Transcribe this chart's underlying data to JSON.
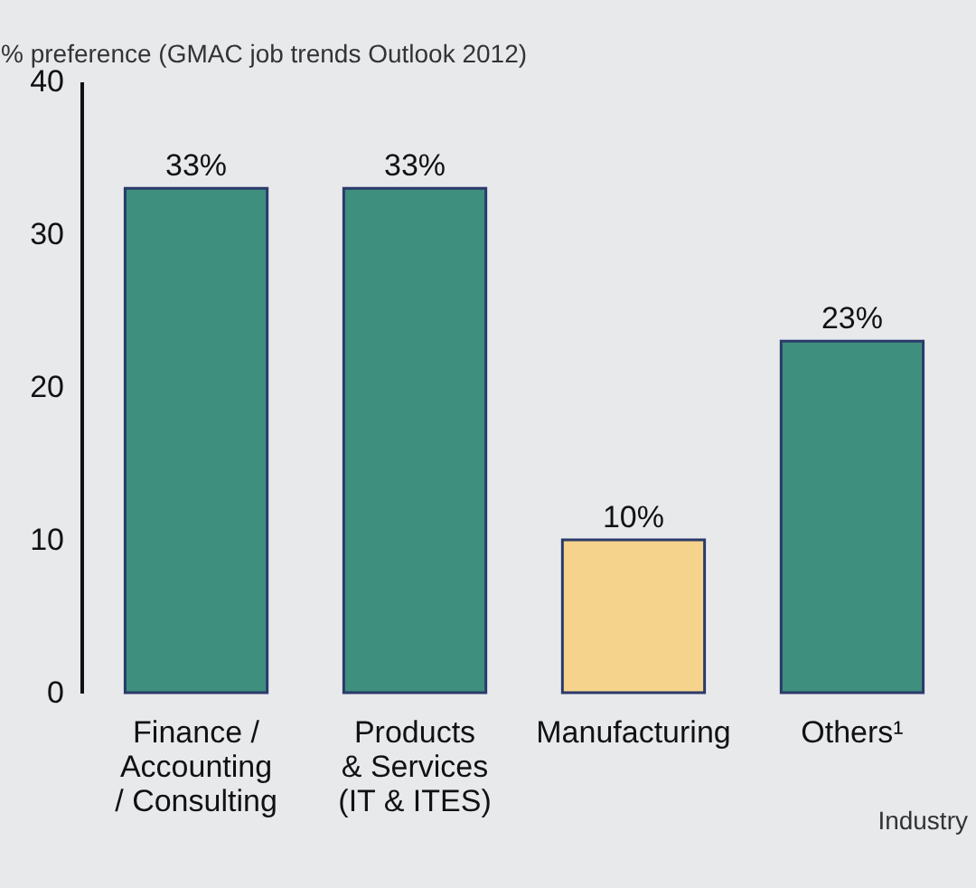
{
  "chart_data": {
    "type": "bar",
    "ylabel": "% preference (GMAC job trends Outlook 2012)",
    "xlabel": "Industry",
    "categories": [
      "Finance /\nAccounting\n/ Consulting",
      "Products\n& Services\n(IT & ITES)",
      "Manufacturing",
      "Others¹"
    ],
    "values": [
      33,
      33,
      10,
      23
    ],
    "colors": [
      "#3e8f7d",
      "#3e8f7d",
      "#f5d38c",
      "#3e8f7d"
    ],
    "value_labels": [
      "33%",
      "33%",
      "10%",
      "23%"
    ],
    "ylim": [
      0,
      40
    ],
    "yticks": [
      0,
      10,
      20,
      30,
      40
    ],
    "grid": false,
    "legend": false
  }
}
